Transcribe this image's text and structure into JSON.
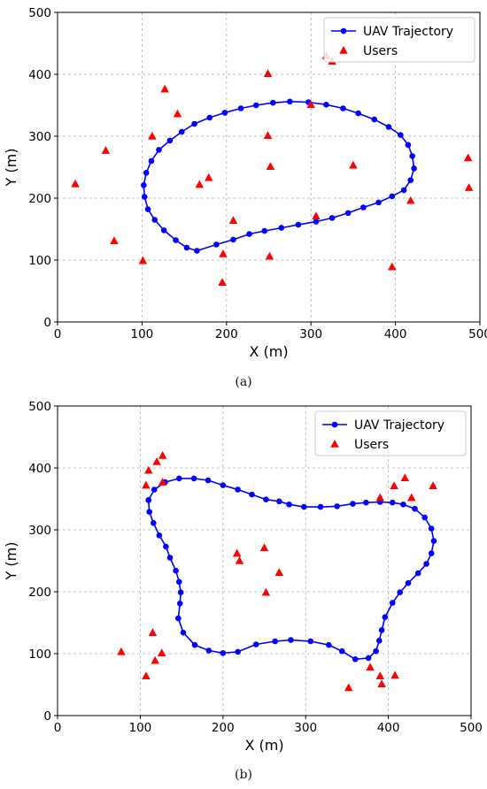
{
  "chart_data": [
    {
      "type": "scatter",
      "caption": "(a)",
      "xlabel": "X (m)",
      "ylabel": "Y (m)",
      "xlim": [
        0,
        500
      ],
      "ylim": [
        0,
        500
      ],
      "xticks": [
        "0",
        "100",
        "200",
        "300",
        "400",
        "500"
      ],
      "yticks": [
        "0",
        "100",
        "200",
        "300",
        "400",
        "500"
      ],
      "grid": true,
      "legend_position": "top-right",
      "series": [
        {
          "name": "UAV Trajectory",
          "kind": "line-marker",
          "color": "#0000ff",
          "points": [
            [
              165,
              115
            ],
            [
              153,
              120
            ],
            [
              140,
              132
            ],
            [
              126,
              148
            ],
            [
              115,
              165
            ],
            [
              107,
              182
            ],
            [
              103,
              202
            ],
            [
              102,
              221
            ],
            [
              105,
              241
            ],
            [
              111,
              260
            ],
            [
              120,
              278
            ],
            [
              133,
              293
            ],
            [
              147,
              307
            ],
            [
              162,
              320
            ],
            [
              180,
              330
            ],
            [
              198,
              338
            ],
            [
              217,
              345
            ],
            [
              235,
              350
            ],
            [
              255,
              354
            ],
            [
              275,
              356
            ],
            [
              297,
              355
            ],
            [
              318,
              351
            ],
            [
              338,
              345
            ],
            [
              356,
              337
            ],
            [
              375,
              327
            ],
            [
              392,
              315
            ],
            [
              406,
              302
            ],
            [
              415,
              286
            ],
            [
              420,
              268
            ],
            [
              422,
              248
            ],
            [
              418,
              229
            ],
            [
              410,
              213
            ],
            [
              396,
              203
            ],
            [
              380,
              193
            ],
            [
              362,
              185
            ],
            [
              344,
              176
            ],
            [
              325,
              168
            ],
            [
              306,
              162
            ],
            [
              285,
              157
            ],
            [
              265,
              152
            ],
            [
              245,
              147
            ],
            [
              227,
              142
            ],
            [
              208,
              133
            ],
            [
              188,
              125
            ]
          ],
          "closed": true
        },
        {
          "name": "Users",
          "kind": "marker",
          "color": "#ff0000",
          "points": [
            [
              21,
              223
            ],
            [
              57,
              277
            ],
            [
              67,
              131
            ],
            [
              101,
              99
            ],
            [
              112,
              300
            ],
            [
              127,
              376
            ],
            [
              142,
              336
            ],
            [
              168,
              222
            ],
            [
              179,
              233
            ],
            [
              196,
              110
            ],
            [
              195,
              64
            ],
            [
              208,
              164
            ],
            [
              249,
              401
            ],
            [
              249,
              301
            ],
            [
              251,
              106
            ],
            [
              252,
              251
            ],
            [
              300,
              351
            ],
            [
              306,
              171
            ],
            [
              318,
              430
            ],
            [
              325,
              421
            ],
            [
              350,
              253
            ],
            [
              396,
              89
            ],
            [
              418,
              196
            ],
            [
              486,
              265
            ],
            [
              487,
              217
            ]
          ]
        }
      ]
    },
    {
      "type": "scatter",
      "caption": "(b)",
      "xlabel": "X (m)",
      "ylabel": "Y (m)",
      "xlim": [
        0,
        500
      ],
      "ylim": [
        0,
        500
      ],
      "xticks": [
        "0",
        "100",
        "200",
        "300",
        "400",
        "500"
      ],
      "yticks": [
        "0",
        "100",
        "200",
        "300",
        "400",
        "500"
      ],
      "grid": true,
      "legend_position": "top-right",
      "series": [
        {
          "name": "UAV Trajectory",
          "kind": "line-marker",
          "color": "#0000ff",
          "points": [
            [
              110,
              348
            ],
            [
              117,
              365
            ],
            [
              130,
              377
            ],
            [
              147,
              383
            ],
            [
              165,
              383
            ],
            [
              182,
              380
            ],
            [
              200,
              372
            ],
            [
              218,
              365
            ],
            [
              235,
              357
            ],
            [
              252,
              349
            ],
            [
              268,
              346
            ],
            [
              280,
              341
            ],
            [
              298,
              337
            ],
            [
              318,
              337
            ],
            [
              338,
              338
            ],
            [
              357,
              342
            ],
            [
              373,
              344
            ],
            [
              390,
              345
            ],
            [
              405,
              344
            ],
            [
              418,
              341
            ],
            [
              432,
              334
            ],
            [
              444,
              320
            ],
            [
              452,
              302
            ],
            [
              455,
              282
            ],
            [
              452,
              262
            ],
            [
              446,
              245
            ],
            [
              436,
              230
            ],
            [
              424,
              214
            ],
            [
              414,
              199
            ],
            [
              405,
              182
            ],
            [
              396,
              159
            ],
            [
              392,
              138
            ],
            [
              389,
              121
            ],
            [
              385,
              104
            ],
            [
              376,
              93
            ],
            [
              360,
              91
            ],
            [
              344,
              104
            ],
            [
              328,
              114
            ],
            [
              306,
              120
            ],
            [
              282,
              122
            ],
            [
              263,
              120
            ],
            [
              240,
              115
            ],
            [
              218,
              103
            ],
            [
              200,
              101
            ],
            [
              183,
              105
            ],
            [
              166,
              114
            ],
            [
              152,
              134
            ],
            [
              146,
              157
            ],
            [
              148,
              181
            ],
            [
              149,
              199
            ],
            [
              147,
              216
            ],
            [
              143,
              234
            ],
            [
              136,
              255
            ],
            [
              131,
              273
            ],
            [
              123,
              291
            ],
            [
              116,
              311
            ],
            [
              111,
              329
            ],
            [
              110,
              348
            ]
          ],
          "closed": false
        },
        {
          "name": "Users",
          "kind": "marker",
          "color": "#ff0000",
          "points": [
            [
              77,
              103
            ],
            [
              107,
              64
            ],
            [
              107,
              372
            ],
            [
              110,
              396
            ],
            [
              115,
              134
            ],
            [
              118,
              89
            ],
            [
              120,
              410
            ],
            [
              126,
              101
            ],
            [
              127,
              377
            ],
            [
              127,
              420
            ],
            [
              217,
              262
            ],
            [
              220,
              250
            ],
            [
              250,
              271
            ],
            [
              252,
              199
            ],
            [
              268,
              231
            ],
            [
              352,
              45
            ],
            [
              378,
              78
            ],
            [
              390,
              64
            ],
            [
              390,
              352
            ],
            [
              392,
              51
            ],
            [
              407,
              371
            ],
            [
              408,
              65
            ],
            [
              420,
              384
            ],
            [
              428,
              352
            ],
            [
              454,
              371
            ]
          ]
        }
      ]
    }
  ]
}
